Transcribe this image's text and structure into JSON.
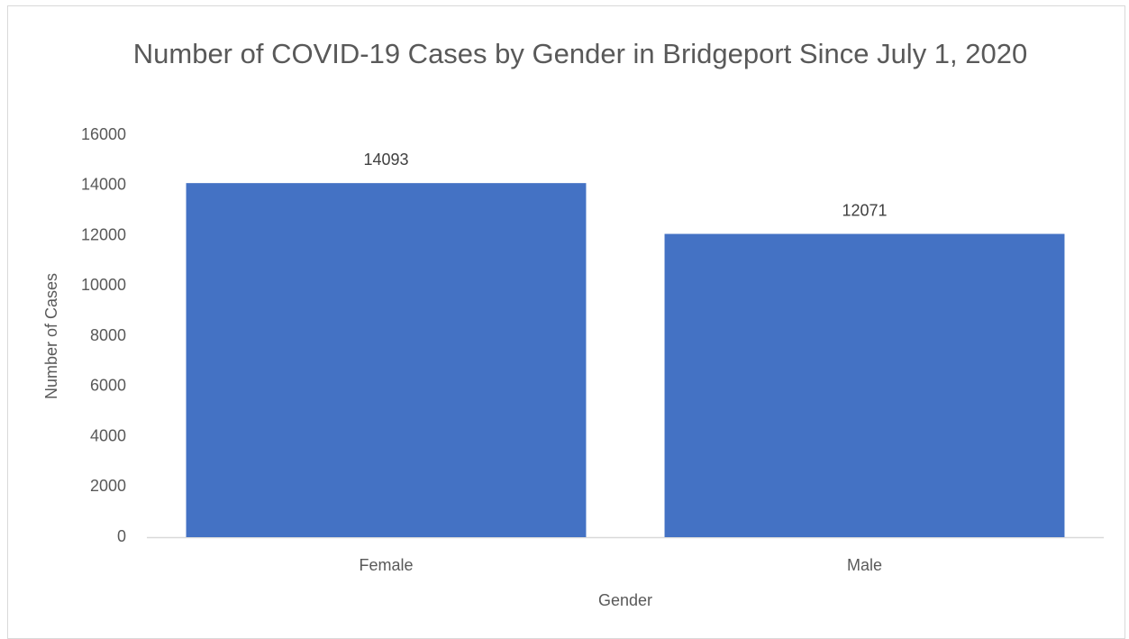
{
  "chart_data": {
    "type": "bar",
    "title": "Number of COVID-19 Cases by Gender in Bridgeport Since July 1, 2020",
    "x_label": "Gender",
    "y_label": "Number of Cases",
    "categories": [
      "Female",
      "Male"
    ],
    "values": [
      14093,
      12071
    ],
    "color": "#4472c4",
    "ylim": [
      0,
      16000
    ],
    "yticks": [
      0,
      2000,
      4000,
      6000,
      8000,
      10000,
      12000,
      14000,
      16000
    ],
    "grid": false
  }
}
